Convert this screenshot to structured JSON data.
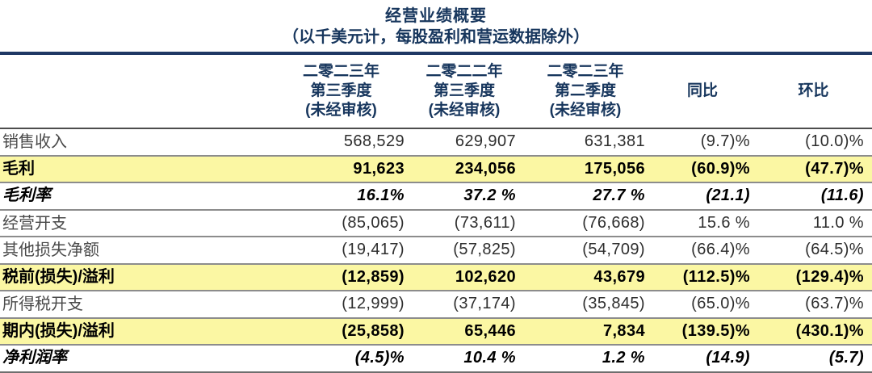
{
  "title": "经营业绩概要",
  "subtitle": "（以千美元计，每股盈利和营运数据除外）",
  "colors": {
    "accent_navy": "#1F3864",
    "title_navy": "#17365D",
    "highlight_yellow": "#FBF7A3",
    "row_rule_gray": "#8c8c8c"
  },
  "table": {
    "columns": [
      {
        "name": "q3-2023",
        "lines": [
          "二零二三年",
          "第三季度",
          "(未经审核)"
        ]
      },
      {
        "name": "q3-2022",
        "lines": [
          "二零二二年",
          "第三季度",
          "(未经审核)"
        ]
      },
      {
        "name": "q2-2023",
        "lines": [
          "二零二三年",
          "第二季度",
          "(未经审核)"
        ]
      },
      {
        "name": "yoy",
        "lines": [
          "同比"
        ]
      },
      {
        "name": "qoq",
        "lines": [
          "环比"
        ]
      }
    ],
    "rows": [
      {
        "label": "销售收入",
        "style": "normal",
        "values": [
          "568,529",
          "629,907",
          "631,381",
          "(9.7)%",
          "(10.0)%"
        ]
      },
      {
        "label": "毛利",
        "style": "highlight",
        "values": [
          "91,623",
          "234,056",
          "175,056",
          "(60.9)%",
          "(47.7)%"
        ]
      },
      {
        "label": "毛利率",
        "style": "italic",
        "values": [
          "16.1%",
          "37.2 %",
          "27.7 %",
          "(21.1)",
          "(11.6)"
        ]
      },
      {
        "label": "经营开支",
        "style": "normal",
        "values": [
          "(85,065)",
          "(73,611)",
          "(76,668)",
          "15.6 %",
          "11.0 %"
        ]
      },
      {
        "label": "其他损失净额",
        "style": "normal",
        "values": [
          "(19,417)",
          "(57,825)",
          "(54,709)",
          "(66.4)%",
          "(64.5)%"
        ]
      },
      {
        "label": "税前(损失)/溢利",
        "style": "highlight",
        "values": [
          "(12,859)",
          "102,620",
          "43,679",
          "(112.5)%",
          "(129.4)%"
        ]
      },
      {
        "label": "所得税开支",
        "style": "normal",
        "values": [
          "(12,999)",
          "(37,174)",
          "(35,845)",
          "(65.0)%",
          "(63.7)%"
        ]
      },
      {
        "label": "期内(损失)/溢利",
        "style": "highlight",
        "values": [
          "(25,858)",
          "65,446",
          "7,834",
          "(139.5)%",
          "(430.1)%"
        ]
      },
      {
        "label": "净利润率",
        "style": "italic",
        "values": [
          "(4.5)%",
          "10.4 %",
          "1.2 %",
          "(14.9)",
          "(5.7)"
        ]
      }
    ]
  }
}
